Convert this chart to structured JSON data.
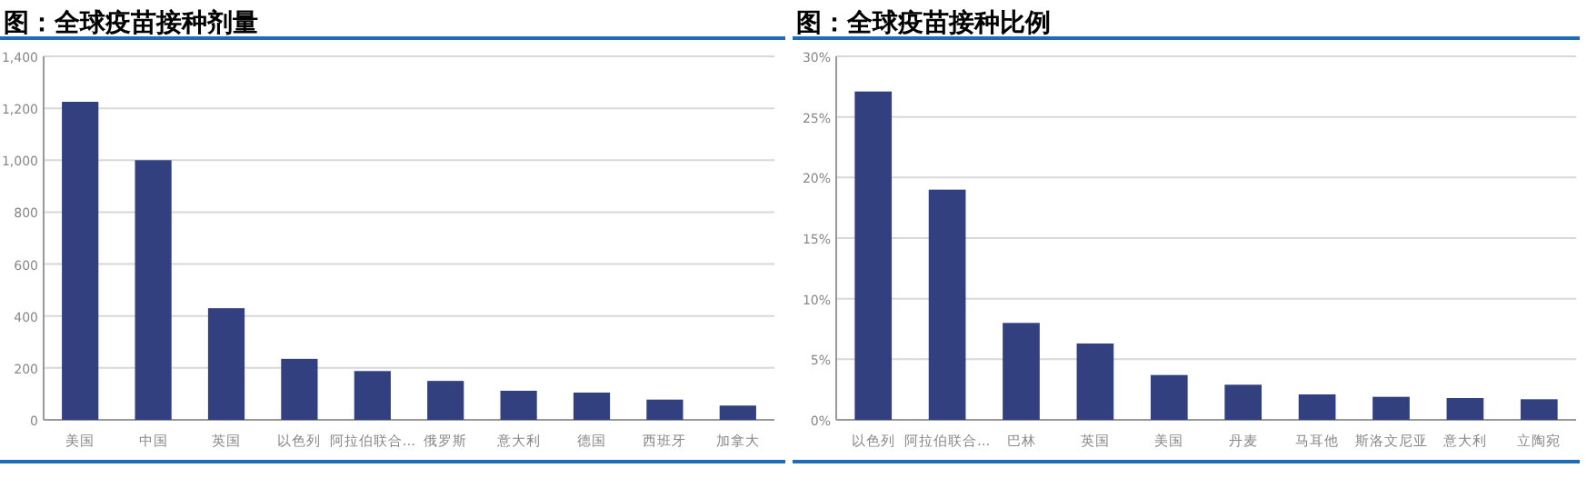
{
  "chart_data": [
    {
      "type": "bar",
      "title": "图：全球疫苗接种剂量",
      "categories": [
        "美国",
        "中国",
        "英国",
        "以色列",
        "阿拉伯联合...",
        "俄罗斯",
        "意大利",
        "德国",
        "西班牙",
        "加拿大"
      ],
      "values": [
        1225,
        1000,
        430,
        235,
        188,
        150,
        112,
        105,
        78,
        55
      ],
      "color": "#334080",
      "ylim": [
        0,
        1400
      ],
      "yticks": [
        0,
        200,
        400,
        600,
        800,
        {
          "value": 1000,
          "label": "1,000"
        },
        {
          "value": 1200,
          "label": "1,200"
        },
        {
          "value": 1400,
          "label": "1,400"
        }
      ],
      "grid": "y"
    },
    {
      "type": "bar",
      "title": "图：全球疫苗接种比例",
      "categories": [
        "以色列",
        "阿拉伯联合...",
        "巴林",
        "英国",
        "美国",
        "丹麦",
        "马耳他",
        "斯洛文尼亚",
        "意大利",
        "立陶宛"
      ],
      "values": [
        27.1,
        19.0,
        8.0,
        6.3,
        3.7,
        2.9,
        2.1,
        1.9,
        1.8,
        1.7
      ],
      "color": "#334080",
      "ylim": [
        0,
        30
      ],
      "yticks": [
        {
          "value": 0,
          "label": "0%"
        },
        {
          "value": 5,
          "label": "5%"
        },
        {
          "value": 10,
          "label": "10%"
        },
        {
          "value": 15,
          "label": "15%"
        },
        {
          "value": 20,
          "label": "20%"
        },
        {
          "value": 25,
          "label": "25%"
        },
        {
          "value": 30,
          "label": "30%"
        }
      ],
      "grid": "y"
    }
  ]
}
